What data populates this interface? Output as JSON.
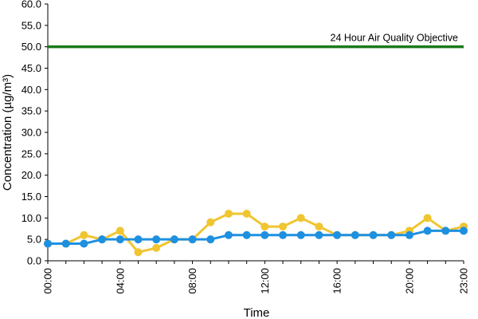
{
  "chart_data": {
    "type": "line",
    "title": "",
    "xlabel": "Time",
    "ylabel": "Concentration (µg/m³)",
    "ylim": [
      0,
      60
    ],
    "yticks": [
      "0.0",
      "5.0",
      "10.0",
      "15.0",
      "20.0",
      "25.0",
      "30.0",
      "35.0",
      "40.0",
      "45.0",
      "50.0",
      "55.0",
      "60.0"
    ],
    "x": [
      "00:00",
      "01:00",
      "02:00",
      "03:00",
      "04:00",
      "05:00",
      "06:00",
      "07:00",
      "08:00",
      "09:00",
      "10:00",
      "11:00",
      "12:00",
      "13:00",
      "14:00",
      "15:00",
      "16:00",
      "17:00",
      "18:00",
      "19:00",
      "20:00",
      "21:00",
      "22:00",
      "23:00"
    ],
    "xticks": [
      "00:00",
      "04:00",
      "08:00",
      "12:00",
      "16:00",
      "20:00",
      "23:00"
    ],
    "grid": false,
    "legend": "none",
    "series": [
      {
        "color": "#f0c530",
        "values": [
          4,
          4,
          6,
          5,
          7,
          2,
          3,
          5,
          5,
          9,
          11,
          11,
          8,
          8,
          10,
          8,
          6,
          6,
          6,
          6,
          7,
          10,
          7,
          8
        ]
      },
      {
        "color": "#1e90e0",
        "values": [
          4,
          4,
          4,
          5,
          5,
          5,
          5,
          5,
          5,
          5,
          6,
          6,
          6,
          6,
          6,
          6,
          6,
          6,
          6,
          6,
          6,
          7,
          7,
          7
        ]
      }
    ],
    "reference_line": {
      "label": "24 Hour Air Quality Objective",
      "value": 50,
      "color": "#1a7a1a"
    }
  }
}
